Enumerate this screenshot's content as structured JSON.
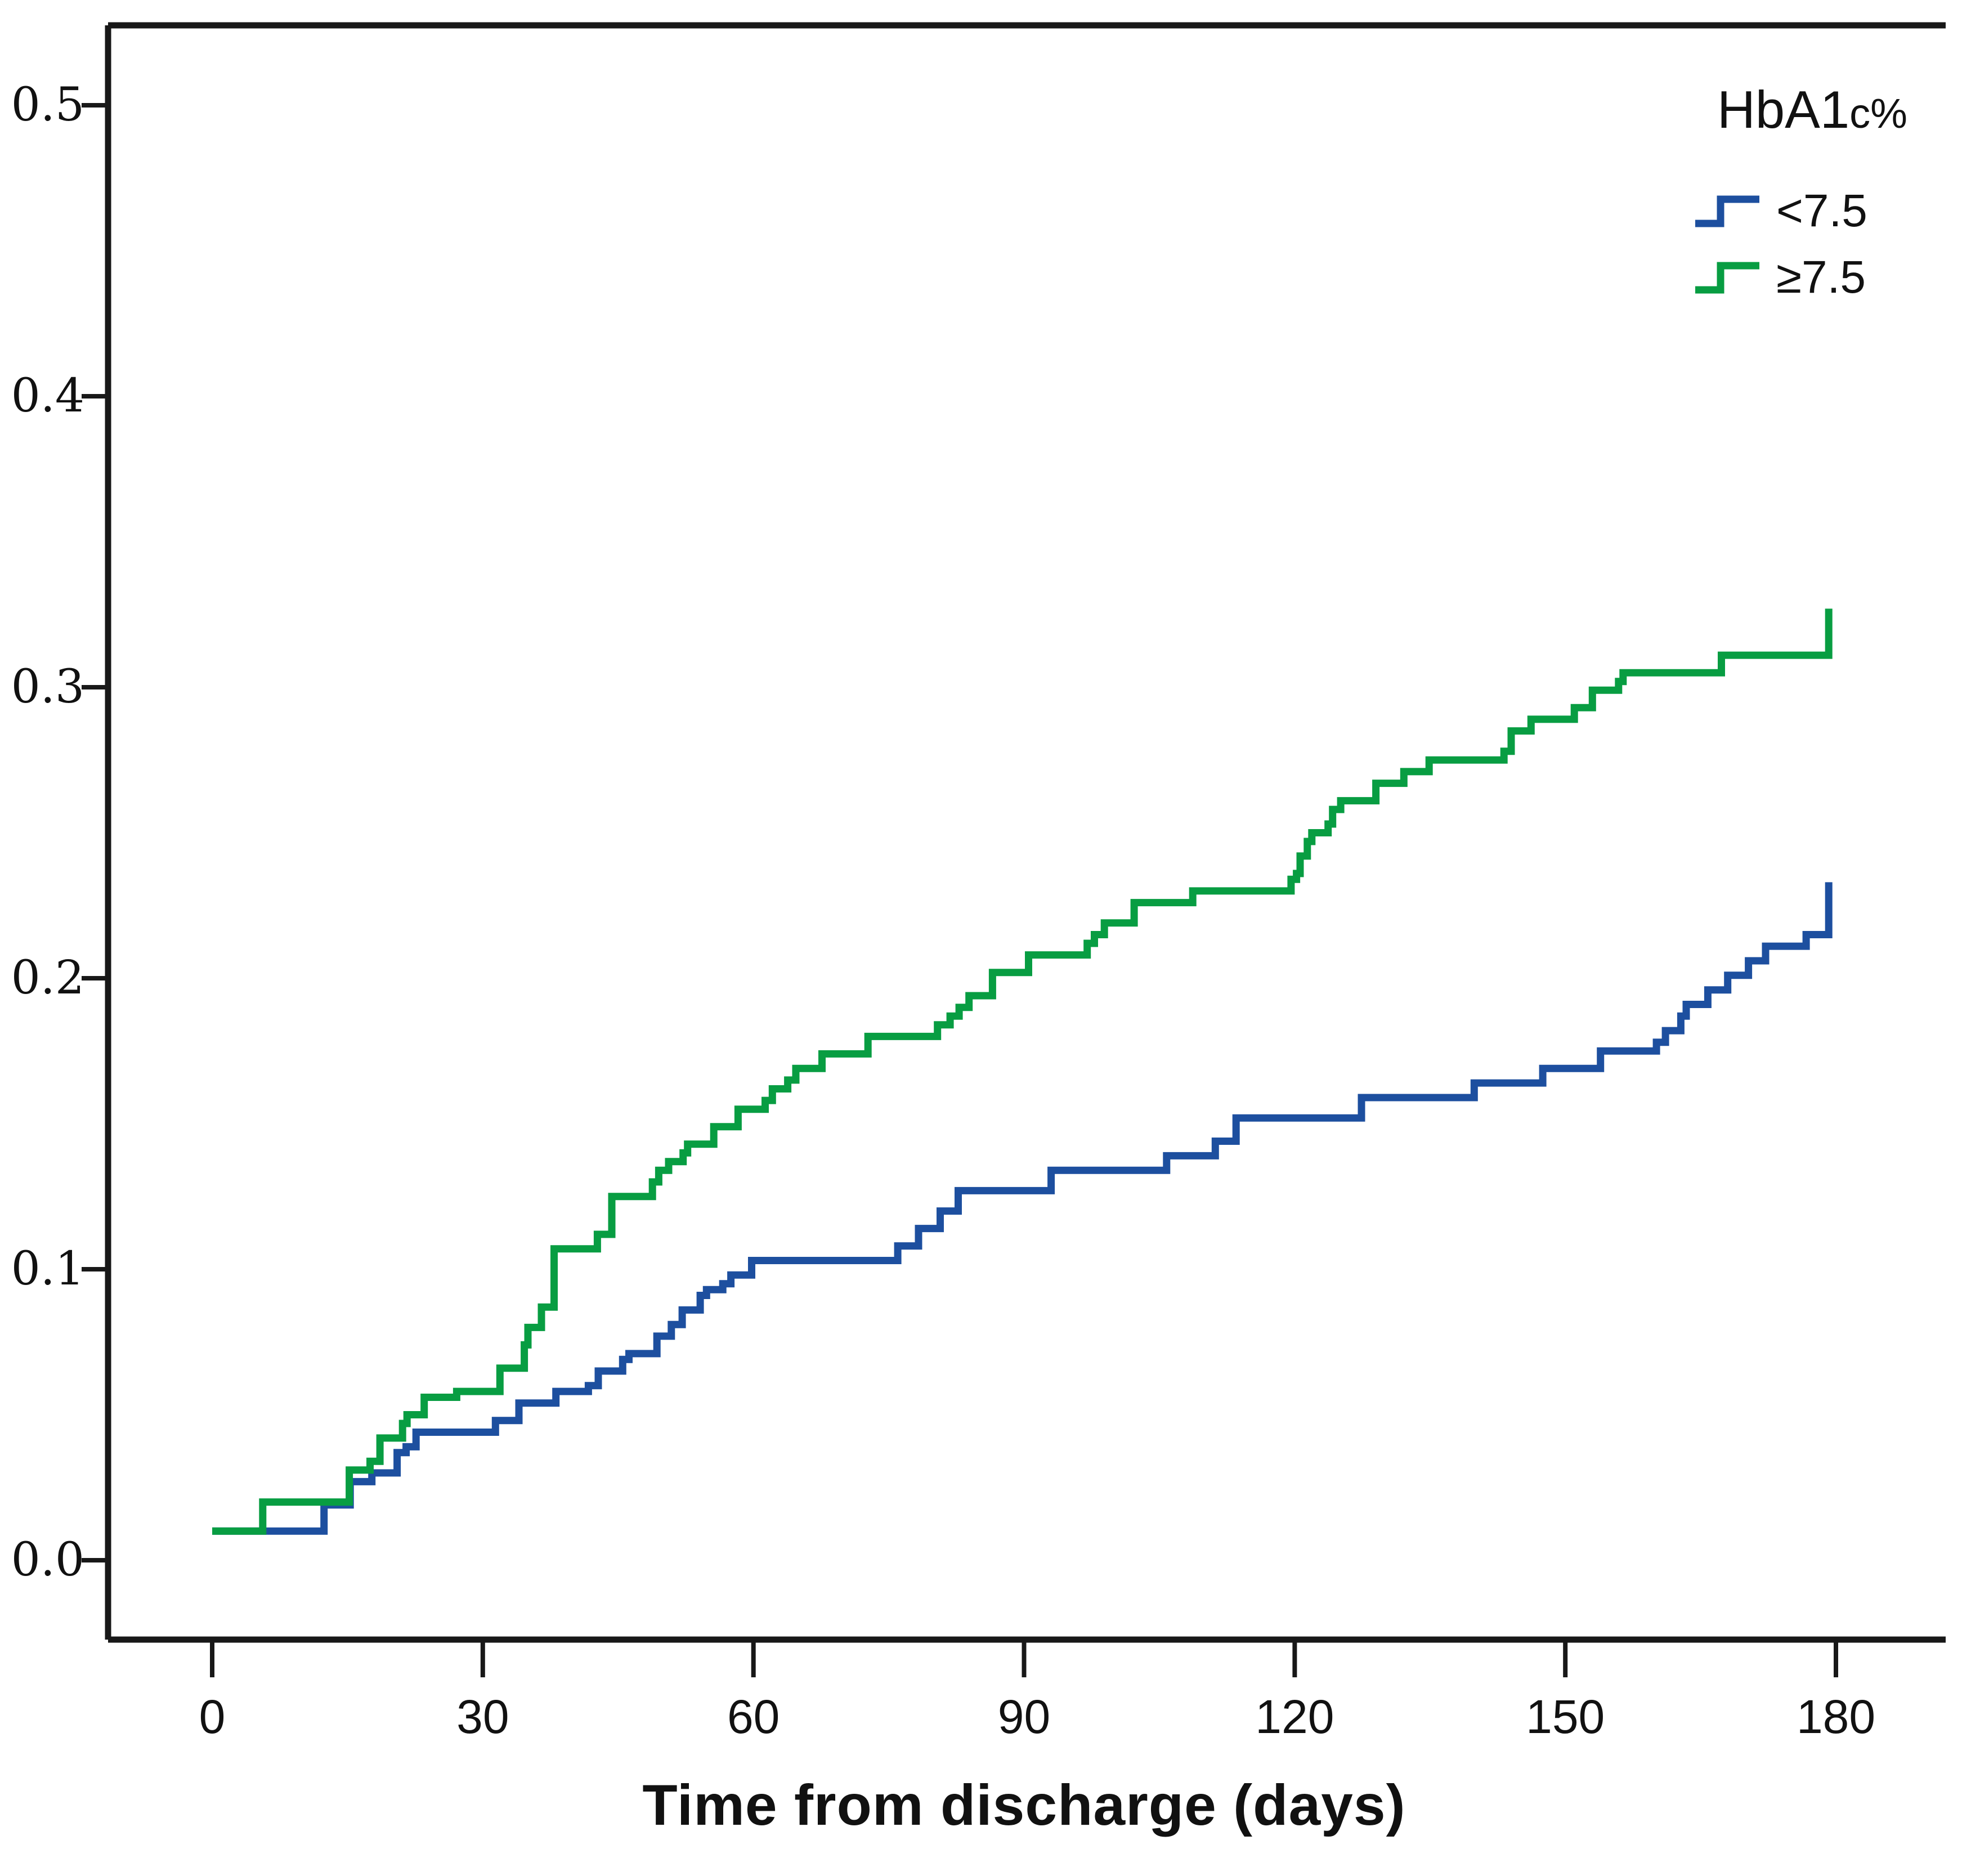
{
  "chart": {
    "legend": {
      "title_main": "HbA1",
      "title_sub": "c%",
      "items": [
        {
          "label": "<7.5",
          "color": "#089d42"
        },
        {
          "label": "≥7.5",
          "color": "#1d4f9f"
        }
      ]
    },
    "x_axis": {
      "title": "Time from discharge (days)",
      "tick_labels": [
        "0",
        "30",
        "60",
        "90",
        "120",
        "150",
        "180"
      ]
    },
    "y_axis": {
      "tick_labels": [
        "0.0",
        "0.1",
        "0.2",
        "0.3",
        "0.4",
        "0.5"
      ]
    }
  },
  "chart_data": {
    "type": "line",
    "subtype": "step-cumulative-incidence",
    "title": "",
    "xlabel": "Time from discharge (days)",
    "ylabel": "",
    "xlim": [
      0,
      180
    ],
    "ylim": [
      0,
      0.5
    ],
    "xticks": [
      0,
      30,
      60,
      90,
      120,
      150,
      180
    ],
    "yticks": [
      0,
      0.1,
      0.2,
      0.3,
      0.4,
      0.5
    ],
    "grid": false,
    "legend_title": "HbA1c%",
    "legend_position": "top-right-inside",
    "frame_color": "#181818",
    "series": [
      {
        "name": "≥7.5",
        "color": "#1d4f9f",
        "points": [
          [
            0,
            0.01
          ],
          [
            12.4,
            0.019
          ],
          [
            15.3,
            0.027
          ],
          [
            17.7,
            0.03
          ],
          [
            20.5,
            0.037
          ],
          [
            21.5,
            0.039
          ],
          [
            22.6,
            0.044
          ],
          [
            31.4,
            0.048
          ],
          [
            34.0,
            0.054
          ],
          [
            38.1,
            0.058
          ],
          [
            41.7,
            0.06
          ],
          [
            42.8,
            0.065
          ],
          [
            45.5,
            0.069
          ],
          [
            46.2,
            0.071
          ],
          [
            49.3,
            0.077
          ],
          [
            50.9,
            0.081
          ],
          [
            52.1,
            0.086
          ],
          [
            54.1,
            0.091
          ],
          [
            54.8,
            0.093
          ],
          [
            56.6,
            0.095
          ],
          [
            57.5,
            0.098
          ],
          [
            59.8,
            0.103
          ],
          [
            76.0,
            0.108
          ],
          [
            78.3,
            0.114
          ],
          [
            80.7,
            0.12
          ],
          [
            82.7,
            0.127
          ],
          [
            93.0,
            0.134
          ],
          [
            105.8,
            0.139
          ],
          [
            111.2,
            0.144
          ],
          [
            113.5,
            0.152
          ],
          [
            127.4,
            0.159
          ],
          [
            139.9,
            0.164
          ],
          [
            147.5,
            0.169
          ],
          [
            153.9,
            0.175
          ],
          [
            160.1,
            0.178
          ],
          [
            161.1,
            0.182
          ],
          [
            162.8,
            0.187
          ],
          [
            163.4,
            0.191
          ],
          [
            165.8,
            0.196
          ],
          [
            168.0,
            0.201
          ],
          [
            170.3,
            0.206
          ],
          [
            172.2,
            0.211
          ],
          [
            176.7,
            0.215
          ],
          [
            179.2,
            0.233
          ]
        ]
      },
      {
        "name": "<7.5",
        "color": "#089d42",
        "points": [
          [
            0,
            0.01
          ],
          [
            5.6,
            0.02
          ],
          [
            15.2,
            0.031
          ],
          [
            17.5,
            0.034
          ],
          [
            18.6,
            0.042
          ],
          [
            21.1,
            0.047
          ],
          [
            21.6,
            0.05
          ],
          [
            23.5,
            0.056
          ],
          [
            27.1,
            0.058
          ],
          [
            31.9,
            0.066
          ],
          [
            34.6,
            0.074
          ],
          [
            35.0,
            0.08
          ],
          [
            36.5,
            0.087
          ],
          [
            37.9,
            0.107
          ],
          [
            42.7,
            0.112
          ],
          [
            44.3,
            0.125
          ],
          [
            48.8,
            0.13
          ],
          [
            49.5,
            0.134
          ],
          [
            50.6,
            0.137
          ],
          [
            52.2,
            0.14
          ],
          [
            52.7,
            0.143
          ],
          [
            55.6,
            0.149
          ],
          [
            58.3,
            0.155
          ],
          [
            61.3,
            0.158
          ],
          [
            62.1,
            0.162
          ],
          [
            63.8,
            0.165
          ],
          [
            64.7,
            0.169
          ],
          [
            67.6,
            0.174
          ],
          [
            72.7,
            0.18
          ],
          [
            80.4,
            0.184
          ],
          [
            81.8,
            0.187
          ],
          [
            82.8,
            0.19
          ],
          [
            83.9,
            0.194
          ],
          [
            86.5,
            0.202
          ],
          [
            90.5,
            0.208
          ],
          [
            97.0,
            0.212
          ],
          [
            97.8,
            0.215
          ],
          [
            98.9,
            0.219
          ],
          [
            102.2,
            0.226
          ],
          [
            108.7,
            0.23
          ],
          [
            119.6,
            0.234
          ],
          [
            120.2,
            0.236
          ],
          [
            120.6,
            0.242
          ],
          [
            121.4,
            0.247
          ],
          [
            121.9,
            0.25
          ],
          [
            123.7,
            0.253
          ],
          [
            124.2,
            0.258
          ],
          [
            125.1,
            0.261
          ],
          [
            129.0,
            0.267
          ],
          [
            132.1,
            0.271
          ],
          [
            134.9,
            0.275
          ],
          [
            143.2,
            0.278
          ],
          [
            144.0,
            0.285
          ],
          [
            146.2,
            0.289
          ],
          [
            151.0,
            0.293
          ],
          [
            153.0,
            0.299
          ],
          [
            155.9,
            0.302
          ],
          [
            156.4,
            0.305
          ],
          [
            167.3,
            0.311
          ],
          [
            179.2,
            0.327
          ]
        ]
      }
    ]
  }
}
